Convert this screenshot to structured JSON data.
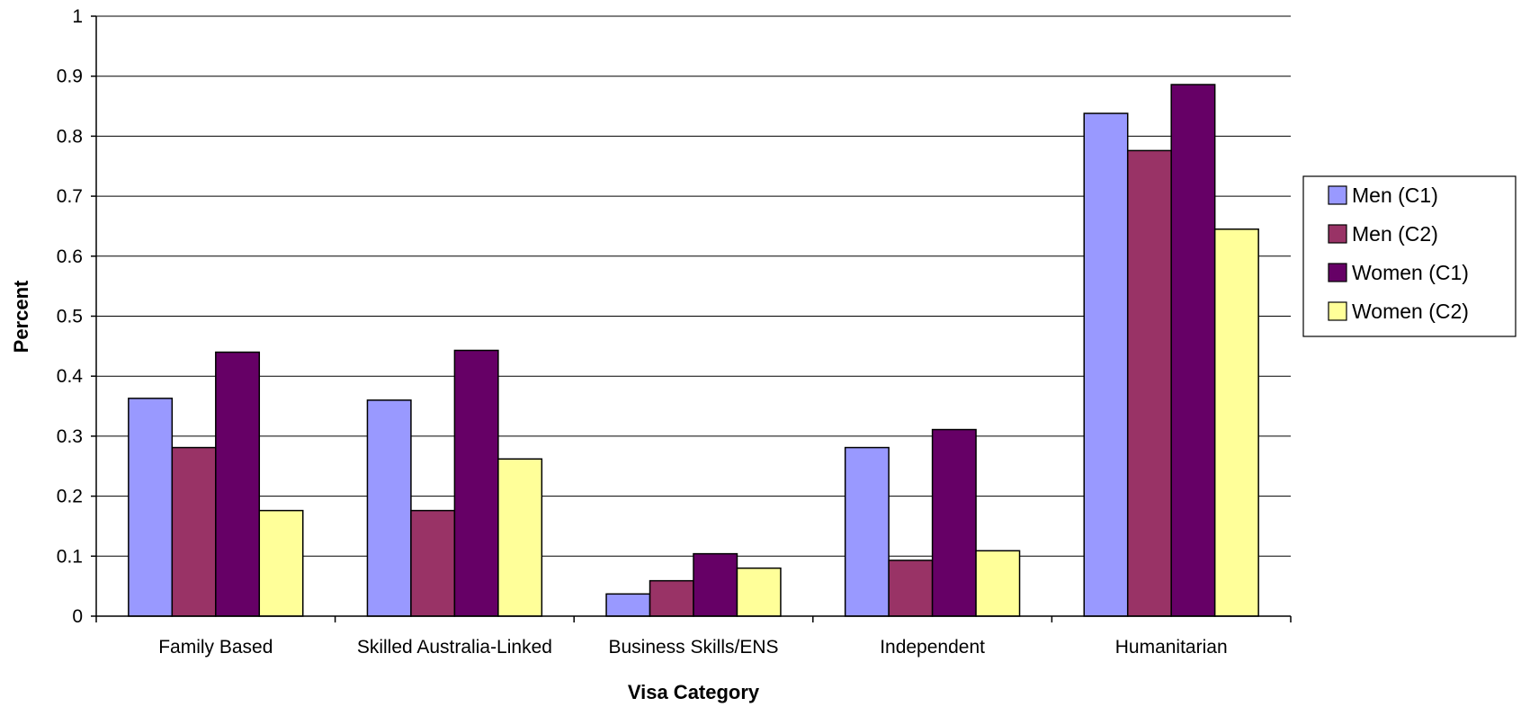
{
  "chart_data": {
    "type": "bar",
    "xlabel": "Visa Category",
    "ylabel": "Percent",
    "ylim": [
      0,
      1
    ],
    "yticks": [
      "0",
      "0.1",
      "0.2",
      "0.3",
      "0.4",
      "0.5",
      "0.6",
      "0.7",
      "0.8",
      "0.9",
      "1"
    ],
    "categories": [
      "Family Based",
      "Skilled Australia-Linked",
      "Business Skills/ENS",
      "Independent",
      "Humanitarian"
    ],
    "series": [
      {
        "name": "Men (C1)",
        "color": "#9999FF",
        "values": [
          0.363,
          0.36,
          0.037,
          0.281,
          0.838
        ]
      },
      {
        "name": "Men (C2)",
        "color": "#993366",
        "values": [
          0.281,
          0.176,
          0.059,
          0.093,
          0.776
        ]
      },
      {
        "name": "Women (C1)",
        "color": "#660066",
        "values": [
          0.44,
          0.443,
          0.104,
          0.311,
          0.886
        ]
      },
      {
        "name": "Women (C2)",
        "color": "#FFFF99",
        "values": [
          0.176,
          0.262,
          0.08,
          0.109,
          0.645
        ]
      }
    ],
    "grid": true,
    "legend": "right"
  }
}
